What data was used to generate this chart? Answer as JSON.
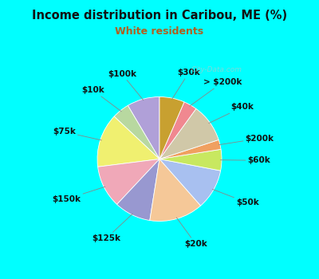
{
  "title": "Income distribution in Caribou, ME (%)",
  "subtitle": "White residents",
  "title_color": "#111111",
  "subtitle_color": "#b06020",
  "bg_cyan": "#00ffff",
  "bg_inner": "#e0f5ee",
  "watermark": "City-Data.com",
  "labels": [
    "$100k",
    "$10k",
    "$75k",
    "$150k",
    "$125k",
    "$20k",
    "$50k",
    "$60k",
    "$200k",
    "$40k",
    "> $200k",
    "$30k"
  ],
  "values": [
    8.5,
    4.5,
    14.0,
    11.0,
    9.5,
    14.0,
    10.5,
    5.5,
    2.5,
    10.0,
    3.5,
    6.5
  ],
  "colors": [
    "#b0a0d8",
    "#b8d8a0",
    "#f0f070",
    "#f0a8b8",
    "#9898d0",
    "#f5c898",
    "#a8c0f0",
    "#c8e860",
    "#f0a060",
    "#d0c8a8",
    "#f08890",
    "#c8a030"
  ],
  "label_fontsize": 7.5,
  "startangle": 90
}
